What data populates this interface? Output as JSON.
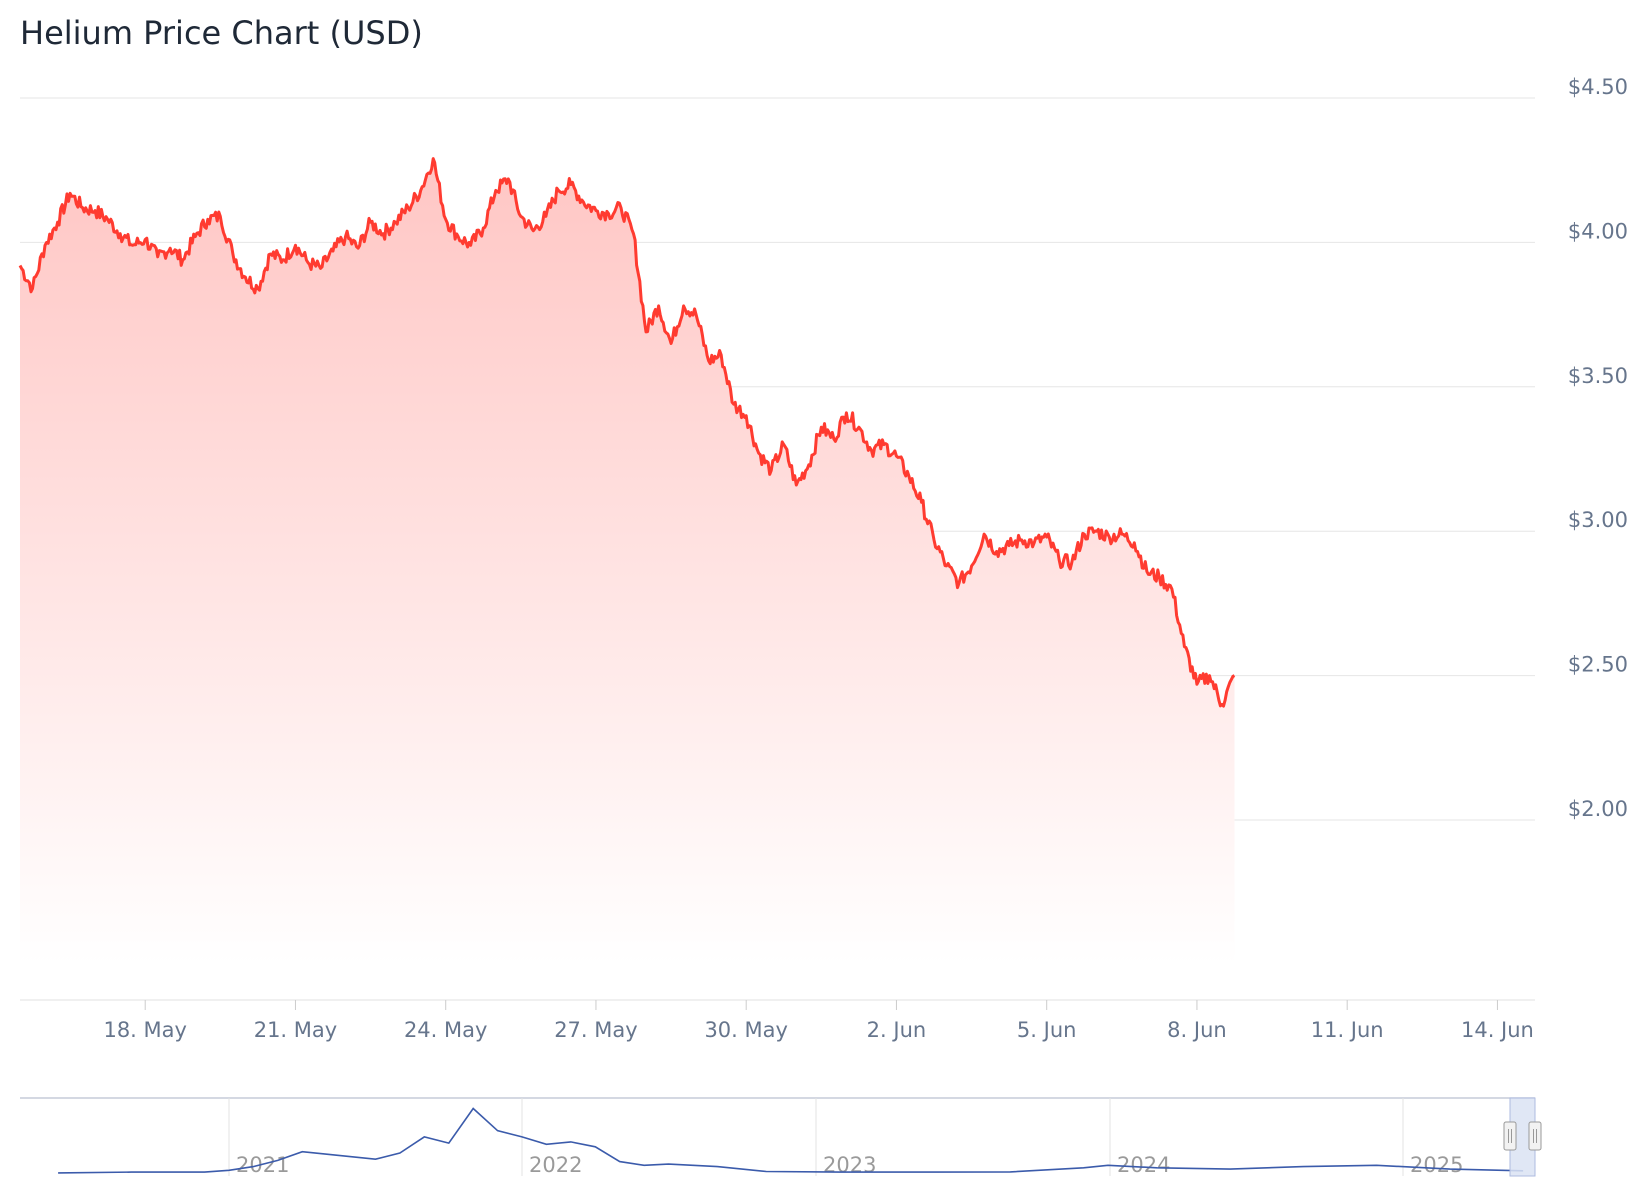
{
  "chart_data": {
    "type": "area",
    "title": "Helium Price Chart (USD)",
    "xlabel": "",
    "ylabel": "",
    "y_axis_position": "right",
    "grid": true,
    "legend": "none",
    "ylim": [
      1.5,
      4.5
    ],
    "y_ticks": [
      2.0,
      2.5,
      3.0,
      3.5,
      4.0,
      4.5
    ],
    "y_tick_labels": [
      "$2.00",
      "$2.50",
      "$3.00",
      "$3.50",
      "$4.00",
      "$4.50"
    ],
    "x_ticks": [
      "2025-05-18",
      "2025-05-21",
      "2025-05-24",
      "2025-05-27",
      "2025-05-30",
      "2025-06-02",
      "2025-06-05",
      "2025-06-08",
      "2025-06-11",
      "2025-06-14"
    ],
    "x_tick_labels": [
      "18. May",
      "21. May",
      "24. May",
      "27. May",
      "30. May",
      "2. Jun",
      "5. Jun",
      "8. Jun",
      "11. Jun",
      "14. Jun"
    ],
    "x_range": [
      "2025-05-15T12:00",
      "2025-06-14T18:00"
    ],
    "series": [
      {
        "color": "#ff3b30",
        "points": [
          [
            "2025-05-15T12:00",
            3.92
          ],
          [
            "2025-05-15T18:00",
            3.84
          ],
          [
            "2025-05-16T00:00",
            3.99
          ],
          [
            "2025-05-16T06:00",
            4.07
          ],
          [
            "2025-05-16T12:00",
            4.17
          ],
          [
            "2025-05-16T18:00",
            4.12
          ],
          [
            "2025-05-17T00:00",
            4.11
          ],
          [
            "2025-05-17T06:00",
            4.08
          ],
          [
            "2025-05-17T12:00",
            4.03
          ],
          [
            "2025-05-17T18:00",
            3.99
          ],
          [
            "2025-05-18T00:00",
            4.01
          ],
          [
            "2025-05-18T06:00",
            3.95
          ],
          [
            "2025-05-18T12:00",
            3.98
          ],
          [
            "2025-05-18T18:00",
            3.94
          ],
          [
            "2025-05-19T00:00",
            4.02
          ],
          [
            "2025-05-19T06:00",
            4.08
          ],
          [
            "2025-05-19T12:00",
            4.09
          ],
          [
            "2025-05-19T18:00",
            3.96
          ],
          [
            "2025-05-20T00:00",
            3.88
          ],
          [
            "2025-05-20T06:00",
            3.84
          ],
          [
            "2025-05-20T12:00",
            3.96
          ],
          [
            "2025-05-20T18:00",
            3.94
          ],
          [
            "2025-05-21T00:00",
            3.99
          ],
          [
            "2025-05-21T06:00",
            3.93
          ],
          [
            "2025-05-21T12:00",
            3.91
          ],
          [
            "2025-05-21T18:00",
            3.97
          ],
          [
            "2025-05-22T00:00",
            4.02
          ],
          [
            "2025-05-22T06:00",
            3.98
          ],
          [
            "2025-05-22T12:00",
            4.07
          ],
          [
            "2025-05-22T18:00",
            4.03
          ],
          [
            "2025-05-23T00:00",
            4.07
          ],
          [
            "2025-05-23T06:00",
            4.12
          ],
          [
            "2025-05-23T12:00",
            4.18
          ],
          [
            "2025-05-23T18:00",
            4.29
          ],
          [
            "2025-05-24T00:00",
            4.08
          ],
          [
            "2025-05-24T06:00",
            4.02
          ],
          [
            "2025-05-24T12:00",
            3.99
          ],
          [
            "2025-05-24T18:00",
            4.05
          ],
          [
            "2025-05-25T00:00",
            4.18
          ],
          [
            "2025-05-25T06:00",
            4.22
          ],
          [
            "2025-05-25T12:00",
            4.09
          ],
          [
            "2025-05-25T18:00",
            4.04
          ],
          [
            "2025-05-26T00:00",
            4.09
          ],
          [
            "2025-05-26T06:00",
            4.18
          ],
          [
            "2025-05-26T12:00",
            4.2
          ],
          [
            "2025-05-26T18:00",
            4.14
          ],
          [
            "2025-05-27T00:00",
            4.11
          ],
          [
            "2025-05-27T06:00",
            4.1
          ],
          [
            "2025-05-27T12:00",
            4.12
          ],
          [
            "2025-05-27T18:00",
            4.03
          ],
          [
            "2025-05-28T00:00",
            3.69
          ],
          [
            "2025-05-28T06:00",
            3.78
          ],
          [
            "2025-05-28T12:00",
            3.65
          ],
          [
            "2025-05-28T18:00",
            3.78
          ],
          [
            "2025-05-29T00:00",
            3.75
          ],
          [
            "2025-05-29T06:00",
            3.59
          ],
          [
            "2025-05-29T12:00",
            3.61
          ],
          [
            "2025-05-29T18:00",
            3.44
          ],
          [
            "2025-05-30T00:00",
            3.4
          ],
          [
            "2025-05-30T06:00",
            3.27
          ],
          [
            "2025-05-30T12:00",
            3.21
          ],
          [
            "2025-05-30T18:00",
            3.3
          ],
          [
            "2025-05-31T00:00",
            3.16
          ],
          [
            "2025-05-31T06:00",
            3.23
          ],
          [
            "2025-05-31T12:00",
            3.36
          ],
          [
            "2025-05-31T18:00",
            3.32
          ],
          [
            "2025-06-01T00:00",
            3.41
          ],
          [
            "2025-06-01T06:00",
            3.36
          ],
          [
            "2025-06-01T12:00",
            3.28
          ],
          [
            "2025-06-01T18:00",
            3.3
          ],
          [
            "2025-06-02T00:00",
            3.26
          ],
          [
            "2025-06-02T06:00",
            3.19
          ],
          [
            "2025-06-02T12:00",
            3.1
          ],
          [
            "2025-06-02T18:00",
            2.97
          ],
          [
            "2025-06-03T00:00",
            2.88
          ],
          [
            "2025-06-03T06:00",
            2.82
          ],
          [
            "2025-06-03T12:00",
            2.88
          ],
          [
            "2025-06-03T18:00",
            2.99
          ],
          [
            "2025-06-04T00:00",
            2.93
          ],
          [
            "2025-06-04T06:00",
            2.95
          ],
          [
            "2025-06-04T12:00",
            2.97
          ],
          [
            "2025-06-04T18:00",
            2.96
          ],
          [
            "2025-06-05T00:00",
            2.98
          ],
          [
            "2025-06-05T06:00",
            2.9
          ],
          [
            "2025-06-05T12:00",
            2.89
          ],
          [
            "2025-06-05T18:00",
            2.99
          ],
          [
            "2025-06-06T00:00",
            3.0
          ],
          [
            "2025-06-06T06:00",
            2.98
          ],
          [
            "2025-06-06T12:00",
            2.99
          ],
          [
            "2025-06-06T18:00",
            2.96
          ],
          [
            "2025-06-07T00:00",
            2.86
          ],
          [
            "2025-06-07T06:00",
            2.84
          ],
          [
            "2025-06-07T12:00",
            2.8
          ],
          [
            "2025-06-07T18:00",
            2.6
          ],
          [
            "2025-06-08T00:00",
            2.47
          ],
          [
            "2025-06-08T06:00",
            2.5
          ],
          [
            "2025-06-08T12:00",
            2.4
          ],
          [
            "2025-06-08T18:00",
            2.5
          ]
        ]
      }
    ]
  },
  "navigator": {
    "x_tick_labels": [
      "2021",
      "2022",
      "2023",
      "2024",
      "2025"
    ],
    "series_color": "#3b5bab",
    "points": [
      [
        "2020-06",
        0.9
      ],
      [
        "2020-09",
        1.5
      ],
      [
        "2020-12",
        1.5
      ],
      [
        "2021-01",
        3
      ],
      [
        "2021-02",
        6
      ],
      [
        "2021-03",
        11
      ],
      [
        "2021-04",
        18
      ],
      [
        "2021-05",
        16
      ],
      [
        "2021-06",
        14
      ],
      [
        "2021-07",
        12
      ],
      [
        "2021-08",
        17
      ],
      [
        "2021-09",
        30
      ],
      [
        "2021-10",
        25
      ],
      [
        "2021-11",
        53
      ],
      [
        "2021-12",
        35
      ],
      [
        "2022-01",
        30
      ],
      [
        "2022-02",
        24
      ],
      [
        "2022-03",
        26
      ],
      [
        "2022-04",
        22
      ],
      [
        "2022-05",
        10
      ],
      [
        "2022-06",
        7
      ],
      [
        "2022-07",
        8
      ],
      [
        "2022-09",
        6
      ],
      [
        "2022-11",
        2
      ],
      [
        "2023-02",
        1.5
      ],
      [
        "2023-06",
        1.5
      ],
      [
        "2023-09",
        1.7
      ],
      [
        "2023-12",
        5
      ],
      [
        "2024-01",
        7
      ],
      [
        "2024-03",
        5
      ],
      [
        "2024-06",
        4
      ],
      [
        "2024-09",
        6
      ],
      [
        "2024-12",
        7
      ],
      [
        "2025-03",
        4
      ],
      [
        "2025-06",
        2.6
      ]
    ]
  },
  "colors": {
    "line": "#ff3b30",
    "area_top": "#ffc9c7",
    "grid": "#e6e6e6",
    "axis_text": "#66758c",
    "nav_line": "#3b5bab",
    "nav_mask": "#dbe3f3"
  }
}
